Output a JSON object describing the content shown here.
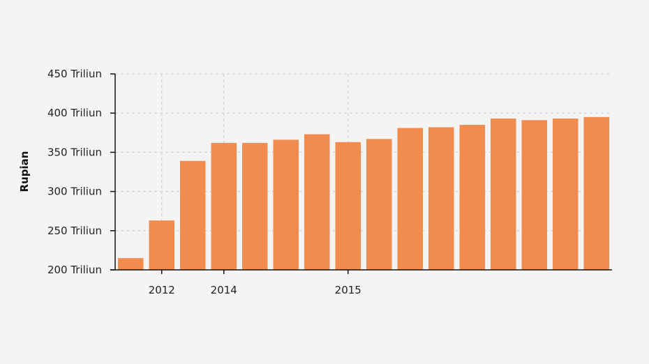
{
  "chart_data": {
    "type": "bar",
    "title": "",
    "xlabel": "",
    "ylabel": "Rupian",
    "ylim": [
      200,
      450
    ],
    "y_ticks": [
      {
        "value": 200,
        "label": "200 Triliun"
      },
      {
        "value": 250,
        "label": "250 Triliun"
      },
      {
        "value": 300,
        "label": "300 Triliun"
      },
      {
        "value": 350,
        "label": "350 Triliun"
      },
      {
        "value": 400,
        "label": "400 Triliun"
      },
      {
        "value": 450,
        "label": "450 Triliun"
      }
    ],
    "x_ticks": [
      {
        "index": 1,
        "label": "2012"
      },
      {
        "index": 3,
        "label": "2014"
      },
      {
        "index": 7,
        "label": "2015"
      }
    ],
    "values": [
      215,
      263,
      339,
      362,
      362,
      366,
      373,
      363,
      367,
      381,
      382,
      385,
      393,
      391,
      393,
      395
    ],
    "grid": true,
    "colors": {
      "bar": "#f28b4e",
      "axis": "#111111",
      "grid": "#c8c8c8",
      "background": "#f4f4f4"
    }
  }
}
